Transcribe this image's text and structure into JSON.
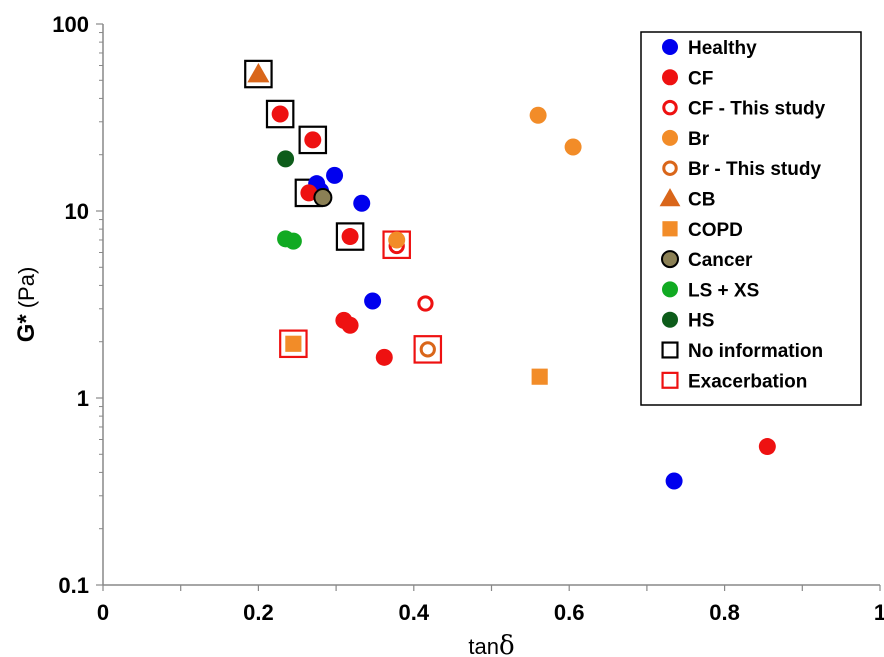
{
  "chart_data": {
    "type": "scatter",
    "x_axis": {
      "label_main": "tan",
      "label_symbol": "δ",
      "range": [
        0,
        1
      ],
      "ticks": [
        0,
        0.2,
        0.4,
        0.6,
        0.8,
        1
      ],
      "tick_labels": [
        "0",
        "0.2",
        "0.4",
        "0.6",
        "0.8",
        "1"
      ],
      "minor_step": 0.1
    },
    "y_axis": {
      "label_main": "G*",
      "label_unit": "(Pa)",
      "scale": "log",
      "range": [
        0.1,
        100
      ],
      "ticks": [
        0.1,
        1,
        10,
        100
      ],
      "tick_labels": [
        "0.1",
        "1",
        "10",
        "100"
      ]
    },
    "grid": false,
    "legend": {
      "position": "top-right",
      "items": [
        {
          "label": "Healthy",
          "marker": "circle",
          "fill": "#0000ee",
          "stroke": "none"
        },
        {
          "label": "CF",
          "marker": "circle",
          "fill": "#ee1111",
          "stroke": "none"
        },
        {
          "label": "CF - This study",
          "marker": "ring",
          "fill": "#ffffff",
          "stroke": "#ee1111"
        },
        {
          "label": "Br",
          "marker": "circle",
          "fill": "#f28c28",
          "stroke": "none"
        },
        {
          "label": "Br - This study",
          "marker": "ring",
          "fill": "#ffffff",
          "stroke": "#d9661a"
        },
        {
          "label": "CB",
          "marker": "triangle",
          "fill": "#d9661a",
          "stroke": "none"
        },
        {
          "label": "COPD",
          "marker": "square",
          "fill": "#f28c28",
          "stroke": "none"
        },
        {
          "label": "Cancer",
          "marker": "circle",
          "fill": "#8b8055",
          "stroke": "#000000"
        },
        {
          "label": "LS + XS",
          "marker": "circle",
          "fill": "#11aa22",
          "stroke": "none"
        },
        {
          "label": "HS",
          "marker": "circle",
          "fill": "#0d5c1a",
          "stroke": "none"
        },
        {
          "label": "No information",
          "marker": "box",
          "fill": "none",
          "stroke": "#000000"
        },
        {
          "label": "Exacerbation",
          "marker": "box",
          "fill": "none",
          "stroke": "#ee1111"
        }
      ]
    },
    "series": [
      {
        "name": "No information",
        "marker": "box",
        "stroke": "#000000",
        "points": [
          {
            "x": 0.2,
            "y": 54
          },
          {
            "x": 0.228,
            "y": 33
          },
          {
            "x": 0.27,
            "y": 24
          },
          {
            "x": 0.265,
            "y": 12.5
          },
          {
            "x": 0.318,
            "y": 7.3
          }
        ]
      },
      {
        "name": "Exacerbation",
        "marker": "box",
        "stroke": "#ee1111",
        "points": [
          {
            "x": 0.378,
            "y": 6.6
          },
          {
            "x": 0.245,
            "y": 1.95
          },
          {
            "x": 0.418,
            "y": 1.82
          }
        ]
      },
      {
        "name": "Healthy",
        "marker": "circle",
        "fill": "#0000ee",
        "points": [
          {
            "x": 0.275,
            "y": 14
          },
          {
            "x": 0.28,
            "y": 12.8
          },
          {
            "x": 0.298,
            "y": 15.5
          },
          {
            "x": 0.333,
            "y": 11
          },
          {
            "x": 0.347,
            "y": 3.3
          },
          {
            "x": 0.735,
            "y": 0.36
          }
        ]
      },
      {
        "name": "CF",
        "marker": "circle",
        "fill": "#ee1111",
        "points": [
          {
            "x": 0.228,
            "y": 33
          },
          {
            "x": 0.27,
            "y": 24
          },
          {
            "x": 0.265,
            "y": 12.5
          },
          {
            "x": 0.318,
            "y": 7.3
          },
          {
            "x": 0.31,
            "y": 2.6
          },
          {
            "x": 0.318,
            "y": 2.45
          },
          {
            "x": 0.362,
            "y": 1.65
          },
          {
            "x": 0.855,
            "y": 0.55
          }
        ]
      },
      {
        "name": "CF - This study",
        "marker": "ring",
        "stroke": "#ee1111",
        "points": [
          {
            "x": 0.378,
            "y": 6.5
          },
          {
            "x": 0.415,
            "y": 3.2
          }
        ]
      },
      {
        "name": "Br",
        "marker": "circle",
        "fill": "#f28c28",
        "points": [
          {
            "x": 0.56,
            "y": 32.5
          },
          {
            "x": 0.605,
            "y": 22
          },
          {
            "x": 0.378,
            "y": 7.0
          }
        ]
      },
      {
        "name": "Br - This study",
        "marker": "ring",
        "stroke": "#d9661a",
        "points": [
          {
            "x": 0.418,
            "y": 1.82
          }
        ]
      },
      {
        "name": "CB",
        "marker": "triangle",
        "fill": "#d9661a",
        "points": [
          {
            "x": 0.2,
            "y": 54
          }
        ]
      },
      {
        "name": "COPD",
        "marker": "square",
        "fill": "#f28c28",
        "points": [
          {
            "x": 0.245,
            "y": 1.95
          },
          {
            "x": 0.562,
            "y": 1.3
          }
        ]
      },
      {
        "name": "Cancer",
        "marker": "circle",
        "fill": "#8b8055",
        "stroke": "#000000",
        "points": [
          {
            "x": 0.283,
            "y": 11.8
          }
        ]
      },
      {
        "name": "LS + XS",
        "marker": "circle",
        "fill": "#11aa22",
        "points": [
          {
            "x": 0.235,
            "y": 7.1
          },
          {
            "x": 0.245,
            "y": 6.9
          }
        ]
      },
      {
        "name": "HS",
        "marker": "circle",
        "fill": "#0d5c1a",
        "points": [
          {
            "x": 0.235,
            "y": 19
          }
        ]
      }
    ]
  }
}
